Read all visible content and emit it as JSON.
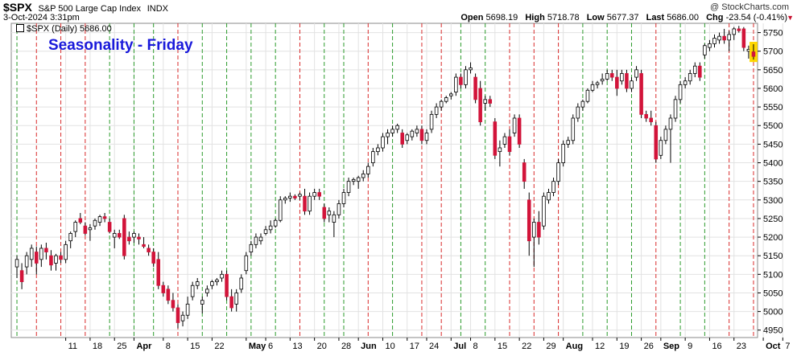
{
  "header": {
    "symbol": "$SPX",
    "description": "S&P 500 Large Cap Index",
    "exchange": "INDX",
    "date": "3-Oct-2024 3:31pm",
    "watermark": "@ StockCharts.com",
    "open_label": "Open",
    "open": "5698.19",
    "high_label": "High",
    "high": "5718.78",
    "low_label": "Low",
    "low": "5677.37",
    "last_label": "Last",
    "last": "5686.00",
    "chg_label": "Chg",
    "chg": "-23.54 (-0.41%)",
    "chg_arrow": "▼"
  },
  "legend": {
    "text": "$SPX (Daily) 5686.00"
  },
  "annotation": {
    "title": "Seasonality - Friday"
  },
  "colors": {
    "up_body": "#ffffff",
    "down_body": "#d2143a",
    "wick": "#000000",
    "green_line": "#2c9b2c",
    "red_line": "#d92b2b",
    "grid": "#e2e2e2",
    "title_blue": "#1a1adb",
    "highlight": "#ffd800"
  },
  "chart_data": {
    "type": "candlestick",
    "title": "Seasonality - Friday",
    "series_name": "$SPX (Daily)",
    "y_ticks": [
      4950,
      5000,
      5050,
      5100,
      5150,
      5200,
      5250,
      5300,
      5350,
      5400,
      5450,
      5500,
      5550,
      5600,
      5650,
      5700,
      5750
    ],
    "ylim": [
      4930,
      5775
    ],
    "grid": true,
    "x_labels": [
      {
        "label": "11",
        "day": 10,
        "bold": false
      },
      {
        "label": "18",
        "day": 15,
        "bold": false
      },
      {
        "label": "25",
        "day": 20,
        "bold": false
      },
      {
        "label": "Apr",
        "day": 24,
        "bold": true
      },
      {
        "label": "8",
        "day": 30,
        "bold": false
      },
      {
        "label": "15",
        "day": 35,
        "bold": false
      },
      {
        "label": "22",
        "day": 40,
        "bold": false
      },
      {
        "label": "May",
        "day": 47,
        "bold": true
      },
      {
        "label": "6",
        "day": 51,
        "bold": false
      },
      {
        "label": "13",
        "day": 56,
        "bold": false
      },
      {
        "label": "20",
        "day": 61,
        "bold": false
      },
      {
        "label": "28",
        "day": 66,
        "bold": false
      },
      {
        "label": "Jun",
        "day": 70,
        "bold": true
      },
      {
        "label": "10",
        "day": 75,
        "bold": false
      },
      {
        "label": "17",
        "day": 80,
        "bold": false
      },
      {
        "label": "24",
        "day": 84,
        "bold": false
      },
      {
        "label": "Jul",
        "day": 89,
        "bold": true
      },
      {
        "label": "8",
        "day": 93,
        "bold": false
      },
      {
        "label": "15",
        "day": 98,
        "bold": false
      },
      {
        "label": "22",
        "day": 103,
        "bold": false
      },
      {
        "label": "29",
        "day": 108,
        "bold": false
      },
      {
        "label": "Aug",
        "day": 112,
        "bold": true
      },
      {
        "label": "12",
        "day": 118,
        "bold": false
      },
      {
        "label": "19",
        "day": 123,
        "bold": false
      },
      {
        "label": "26",
        "day": 128,
        "bold": false
      },
      {
        "label": "Sep",
        "day": 132,
        "bold": true
      },
      {
        "label": "9",
        "day": 137,
        "bold": false
      },
      {
        "label": "16",
        "day": 142,
        "bold": false
      },
      {
        "label": "23",
        "day": 147,
        "bold": false
      },
      {
        "label": "Oct",
        "day": 153,
        "bold": true
      },
      {
        "label": "7",
        "day": 157,
        "bold": false
      }
    ],
    "friday_lines": [
      {
        "day": 0,
        "result": "up"
      },
      {
        "day": 4,
        "result": "down"
      },
      {
        "day": 9,
        "result": "down"
      },
      {
        "day": 14,
        "result": "down"
      },
      {
        "day": 19,
        "result": "up"
      },
      {
        "day": 24,
        "result": "up"
      },
      {
        "day": 28,
        "result": "up"
      },
      {
        "day": 33,
        "result": "down"
      },
      {
        "day": 38,
        "result": "up"
      },
      {
        "day": 43,
        "result": "up"
      },
      {
        "day": 48,
        "result": "up"
      },
      {
        "day": 53,
        "result": "up"
      },
      {
        "day": 58,
        "result": "down"
      },
      {
        "day": 63,
        "result": "up"
      },
      {
        "day": 67,
        "result": "up"
      },
      {
        "day": 72,
        "result": "down"
      },
      {
        "day": 77,
        "result": "up"
      },
      {
        "day": 83,
        "result": "down"
      },
      {
        "day": 87,
        "result": "down"
      },
      {
        "day": 91,
        "result": "up"
      },
      {
        "day": 96,
        "result": "up"
      },
      {
        "day": 101,
        "result": "down"
      },
      {
        "day": 106,
        "result": "down"
      },
      {
        "day": 111,
        "result": "down"
      },
      {
        "day": 116,
        "result": "up"
      },
      {
        "day": 121,
        "result": "up"
      },
      {
        "day": 126,
        "result": "up"
      },
      {
        "day": 131,
        "result": "down"
      },
      {
        "day": 136,
        "result": "up"
      },
      {
        "day": 141,
        "result": "up"
      },
      {
        "day": 146,
        "result": "down"
      },
      {
        "day": 151,
        "result": "down"
      }
    ],
    "candles": [
      {
        "o": 5120,
        "h": 5150,
        "l": 5090,
        "c": 5140
      },
      {
        "o": 5110,
        "h": 5130,
        "l": 5060,
        "c": 5080
      },
      {
        "o": 5120,
        "h": 5160,
        "l": 5100,
        "c": 5150
      },
      {
        "o": 5140,
        "h": 5180,
        "l": 5120,
        "c": 5170
      },
      {
        "o": 5160,
        "h": 5175,
        "l": 5100,
        "c": 5130
      },
      {
        "o": 5140,
        "h": 5180,
        "l": 5120,
        "c": 5170
      },
      {
        "o": 5170,
        "h": 5185,
        "l": 5140,
        "c": 5160
      },
      {
        "o": 5150,
        "h": 5165,
        "l": 5110,
        "c": 5125
      },
      {
        "o": 5130,
        "h": 5155,
        "l": 5110,
        "c": 5150
      },
      {
        "o": 5150,
        "h": 5160,
        "l": 5130,
        "c": 5140
      },
      {
        "o": 5140,
        "h": 5190,
        "l": 5130,
        "c": 5180
      },
      {
        "o": 5190,
        "h": 5215,
        "l": 5170,
        "c": 5210
      },
      {
        "o": 5215,
        "h": 5245,
        "l": 5200,
        "c": 5240
      },
      {
        "o": 5250,
        "h": 5265,
        "l": 5235,
        "c": 5240
      },
      {
        "o": 5230,
        "h": 5240,
        "l": 5205,
        "c": 5210
      },
      {
        "o": 5220,
        "h": 5235,
        "l": 5190,
        "c": 5225
      },
      {
        "o": 5230,
        "h": 5250,
        "l": 5220,
        "c": 5245
      },
      {
        "o": 5240,
        "h": 5260,
        "l": 5230,
        "c": 5255
      },
      {
        "o": 5255,
        "h": 5265,
        "l": 5240,
        "c": 5250
      },
      {
        "o": 5240,
        "h": 5250,
        "l": 5210,
        "c": 5215
      },
      {
        "o": 5200,
        "h": 5220,
        "l": 5170,
        "c": 5210
      },
      {
        "o": 5210,
        "h": 5220,
        "l": 5195,
        "c": 5200
      },
      {
        "o": 5250,
        "h": 5260,
        "l": 5140,
        "c": 5150
      },
      {
        "o": 5200,
        "h": 5215,
        "l": 5180,
        "c": 5190
      },
      {
        "o": 5200,
        "h": 5215,
        "l": 5185,
        "c": 5210
      },
      {
        "o": 5200,
        "h": 5210,
        "l": 5180,
        "c": 5195
      },
      {
        "o": 5180,
        "h": 5200,
        "l": 5170,
        "c": 5175
      },
      {
        "o": 5170,
        "h": 5180,
        "l": 5150,
        "c": 5160
      },
      {
        "o": 5160,
        "h": 5170,
        "l": 5120,
        "c": 5130
      },
      {
        "o": 5140,
        "h": 5160,
        "l": 5060,
        "c": 5070
      },
      {
        "o": 5070,
        "h": 5080,
        "l": 5040,
        "c": 5050
      },
      {
        "o": 5060,
        "h": 5070,
        "l": 5020,
        "c": 5030
      },
      {
        "o": 5030,
        "h": 5050,
        "l": 5000,
        "c": 5010
      },
      {
        "o": 5010,
        "h": 5020,
        "l": 4955,
        "c": 4970
      },
      {
        "o": 4975,
        "h": 5000,
        "l": 4960,
        "c": 4990
      },
      {
        "o": 4990,
        "h": 5040,
        "l": 4980,
        "c": 5020
      },
      {
        "o": 5040,
        "h": 5080,
        "l": 5030,
        "c": 5070
      },
      {
        "o": 5070,
        "h": 5090,
        "l": 5060,
        "c": 5080
      },
      {
        "o": 5020,
        "h": 5040,
        "l": 4995,
        "c": 5030
      },
      {
        "o": 5050,
        "h": 5070,
        "l": 5040,
        "c": 5060
      },
      {
        "o": 5070,
        "h": 5085,
        "l": 5060,
        "c": 5080
      },
      {
        "o": 5080,
        "h": 5090,
        "l": 5070,
        "c": 5085
      },
      {
        "o": 5090,
        "h": 5110,
        "l": 5080,
        "c": 5100
      },
      {
        "o": 5100,
        "h": 5110,
        "l": 5030,
        "c": 5040
      },
      {
        "o": 5040,
        "h": 5060,
        "l": 5000,
        "c": 5010
      },
      {
        "o": 5020,
        "h": 5060,
        "l": 5000,
        "c": 5050
      },
      {
        "o": 5060,
        "h": 5100,
        "l": 5050,
        "c": 5090
      },
      {
        "o": 5110,
        "h": 5160,
        "l": 5100,
        "c": 5150
      },
      {
        "o": 5160,
        "h": 5190,
        "l": 5150,
        "c": 5180
      },
      {
        "o": 5180,
        "h": 5210,
        "l": 5170,
        "c": 5200
      },
      {
        "o": 5190,
        "h": 5210,
        "l": 5180,
        "c": 5200
      },
      {
        "o": 5210,
        "h": 5230,
        "l": 5205,
        "c": 5220
      },
      {
        "o": 5220,
        "h": 5245,
        "l": 5210,
        "c": 5230
      },
      {
        "o": 5230,
        "h": 5250,
        "l": 5225,
        "c": 5245
      },
      {
        "o": 5245,
        "h": 5310,
        "l": 5240,
        "c": 5300
      },
      {
        "o": 5300,
        "h": 5310,
        "l": 5290,
        "c": 5305
      },
      {
        "o": 5305,
        "h": 5320,
        "l": 5295,
        "c": 5310
      },
      {
        "o": 5310,
        "h": 5315,
        "l": 5300,
        "c": 5305
      },
      {
        "o": 5310,
        "h": 5320,
        "l": 5300,
        "c": 5315
      },
      {
        "o": 5310,
        "h": 5330,
        "l": 5260,
        "c": 5270
      },
      {
        "o": 5270,
        "h": 5320,
        "l": 5260,
        "c": 5310
      },
      {
        "o": 5310,
        "h": 5330,
        "l": 5300,
        "c": 5320
      },
      {
        "o": 5320,
        "h": 5330,
        "l": 5300,
        "c": 5310
      },
      {
        "o": 5280,
        "h": 5290,
        "l": 5240,
        "c": 5250
      },
      {
        "o": 5260,
        "h": 5280,
        "l": 5240,
        "c": 5270
      },
      {
        "o": 5240,
        "h": 5270,
        "l": 5200,
        "c": 5260
      },
      {
        "o": 5260,
        "h": 5300,
        "l": 5250,
        "c": 5290
      },
      {
        "o": 5290,
        "h": 5330,
        "l": 5280,
        "c": 5320
      },
      {
        "o": 5320,
        "h": 5360,
        "l": 5310,
        "c": 5350
      },
      {
        "o": 5350,
        "h": 5360,
        "l": 5340,
        "c": 5355
      },
      {
        "o": 5350,
        "h": 5365,
        "l": 5330,
        "c": 5360
      },
      {
        "o": 5360,
        "h": 5380,
        "l": 5350,
        "c": 5370
      },
      {
        "o": 5370,
        "h": 5400,
        "l": 5360,
        "c": 5390
      },
      {
        "o": 5400,
        "h": 5440,
        "l": 5390,
        "c": 5430
      },
      {
        "o": 5430,
        "h": 5450,
        "l": 5420,
        "c": 5440
      },
      {
        "o": 5440,
        "h": 5480,
        "l": 5430,
        "c": 5470
      },
      {
        "o": 5470,
        "h": 5490,
        "l": 5450,
        "c": 5480
      },
      {
        "o": 5480,
        "h": 5500,
        "l": 5470,
        "c": 5490
      },
      {
        "o": 5490,
        "h": 5505,
        "l": 5480,
        "c": 5500
      },
      {
        "o": 5480,
        "h": 5490,
        "l": 5440,
        "c": 5450
      },
      {
        "o": 5460,
        "h": 5480,
        "l": 5450,
        "c": 5475
      },
      {
        "o": 5470,
        "h": 5490,
        "l": 5460,
        "c": 5485
      },
      {
        "o": 5480,
        "h": 5500,
        "l": 5470,
        "c": 5490
      },
      {
        "o": 5490,
        "h": 5500,
        "l": 5450,
        "c": 5460
      },
      {
        "o": 5460,
        "h": 5490,
        "l": 5450,
        "c": 5480
      },
      {
        "o": 5490,
        "h": 5540,
        "l": 5480,
        "c": 5530
      },
      {
        "o": 5530,
        "h": 5560,
        "l": 5520,
        "c": 5550
      },
      {
        "o": 5550,
        "h": 5570,
        "l": 5540,
        "c": 5565
      },
      {
        "o": 5565,
        "h": 5580,
        "l": 5560,
        "c": 5575
      },
      {
        "o": 5580,
        "h": 5590,
        "l": 5570,
        "c": 5585
      },
      {
        "o": 5590,
        "h": 5640,
        "l": 5580,
        "c": 5630
      },
      {
        "o": 5630,
        "h": 5640,
        "l": 5600,
        "c": 5610
      },
      {
        "o": 5610,
        "h": 5660,
        "l": 5600,
        "c": 5650
      },
      {
        "o": 5650,
        "h": 5670,
        "l": 5640,
        "c": 5655
      },
      {
        "o": 5630,
        "h": 5640,
        "l": 5560,
        "c": 5570
      },
      {
        "o": 5600,
        "h": 5620,
        "l": 5500,
        "c": 5510
      },
      {
        "o": 5560,
        "h": 5580,
        "l": 5540,
        "c": 5570
      },
      {
        "o": 5570,
        "h": 5580,
        "l": 5550,
        "c": 5560
      },
      {
        "o": 5510,
        "h": 5520,
        "l": 5410,
        "c": 5420
      },
      {
        "o": 5430,
        "h": 5460,
        "l": 5390,
        "c": 5440
      },
      {
        "o": 5450,
        "h": 5480,
        "l": 5440,
        "c": 5470
      },
      {
        "o": 5470,
        "h": 5490,
        "l": 5420,
        "c": 5430
      },
      {
        "o": 5480,
        "h": 5530,
        "l": 5470,
        "c": 5520
      },
      {
        "o": 5520,
        "h": 5530,
        "l": 5440,
        "c": 5450
      },
      {
        "o": 5400,
        "h": 5410,
        "l": 5330,
        "c": 5350
      },
      {
        "o": 5300,
        "h": 5320,
        "l": 5150,
        "c": 5190
      },
      {
        "o": 5200,
        "h": 5250,
        "l": 5120,
        "c": 5240
      },
      {
        "o": 5240,
        "h": 5270,
        "l": 5180,
        "c": 5200
      },
      {
        "o": 5230,
        "h": 5320,
        "l": 5220,
        "c": 5310
      },
      {
        "o": 5300,
        "h": 5330,
        "l": 5290,
        "c": 5320
      },
      {
        "o": 5320,
        "h": 5360,
        "l": 5310,
        "c": 5350
      },
      {
        "o": 5350,
        "h": 5410,
        "l": 5340,
        "c": 5400
      },
      {
        "o": 5400,
        "h": 5460,
        "l": 5390,
        "c": 5450
      },
      {
        "o": 5450,
        "h": 5470,
        "l": 5440,
        "c": 5460
      },
      {
        "o": 5460,
        "h": 5530,
        "l": 5450,
        "c": 5520
      },
      {
        "o": 5520,
        "h": 5560,
        "l": 5510,
        "c": 5550
      },
      {
        "o": 5550,
        "h": 5570,
        "l": 5540,
        "c": 5565
      },
      {
        "o": 5565,
        "h": 5600,
        "l": 5560,
        "c": 5595
      },
      {
        "o": 5595,
        "h": 5620,
        "l": 5590,
        "c": 5610
      },
      {
        "o": 5610,
        "h": 5620,
        "l": 5600,
        "c": 5615
      },
      {
        "o": 5620,
        "h": 5640,
        "l": 5610,
        "c": 5625
      },
      {
        "o": 5625,
        "h": 5650,
        "l": 5620,
        "c": 5640
      },
      {
        "o": 5640,
        "h": 5650,
        "l": 5620,
        "c": 5630
      },
      {
        "o": 5630,
        "h": 5650,
        "l": 5580,
        "c": 5600
      },
      {
        "o": 5620,
        "h": 5650,
        "l": 5610,
        "c": 5640
      },
      {
        "o": 5640,
        "h": 5650,
        "l": 5590,
        "c": 5600
      },
      {
        "o": 5600,
        "h": 5630,
        "l": 5590,
        "c": 5620
      },
      {
        "o": 5630,
        "h": 5660,
        "l": 5620,
        "c": 5650
      },
      {
        "o": 5640,
        "h": 5650,
        "l": 5520,
        "c": 5530
      },
      {
        "o": 5530,
        "h": 5540,
        "l": 5510,
        "c": 5520
      },
      {
        "o": 5520,
        "h": 5540,
        "l": 5500,
        "c": 5510
      },
      {
        "o": 5500,
        "h": 5510,
        "l": 5400,
        "c": 5410
      },
      {
        "o": 5420,
        "h": 5470,
        "l": 5410,
        "c": 5460
      },
      {
        "o": 5460,
        "h": 5500,
        "l": 5450,
        "c": 5490
      },
      {
        "o": 5490,
        "h": 5530,
        "l": 5400,
        "c": 5520
      },
      {
        "o": 5520,
        "h": 5580,
        "l": 5510,
        "c": 5570
      },
      {
        "o": 5570,
        "h": 5620,
        "l": 5560,
        "c": 5610
      },
      {
        "o": 5610,
        "h": 5630,
        "l": 5600,
        "c": 5620
      },
      {
        "o": 5620,
        "h": 5650,
        "l": 5610,
        "c": 5640
      },
      {
        "o": 5640,
        "h": 5670,
        "l": 5630,
        "c": 5660
      },
      {
        "o": 5660,
        "h": 5670,
        "l": 5620,
        "c": 5630
      },
      {
        "o": 5690,
        "h": 5720,
        "l": 5680,
        "c": 5715
      },
      {
        "o": 5710,
        "h": 5730,
        "l": 5700,
        "c": 5720
      },
      {
        "o": 5720,
        "h": 5745,
        "l": 5710,
        "c": 5735
      },
      {
        "o": 5730,
        "h": 5750,
        "l": 5720,
        "c": 5740
      },
      {
        "o": 5740,
        "h": 5760,
        "l": 5720,
        "c": 5730
      },
      {
        "o": 5730,
        "h": 5755,
        "l": 5700,
        "c": 5745
      },
      {
        "o": 5745,
        "h": 5765,
        "l": 5730,
        "c": 5760
      },
      {
        "o": 5760,
        "h": 5768,
        "l": 5750,
        "c": 5755
      },
      {
        "o": 5760,
        "h": 5765,
        "l": 5700,
        "c": 5710
      },
      {
        "o": 5700,
        "h": 5715,
        "l": 5680,
        "c": 5705
      },
      {
        "o": 5698.19,
        "h": 5718.78,
        "l": 5677.37,
        "c": 5686.0,
        "highlight": true
      }
    ]
  }
}
